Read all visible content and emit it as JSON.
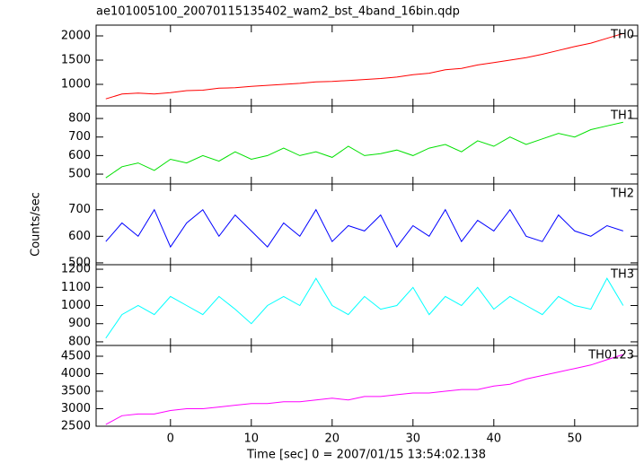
{
  "chart_data": {
    "type": "line",
    "title": "ae101005100_20070115135402_wam2_bst_4band_16bin.qdp",
    "x_label": "Time [sec] 0 = 2007/01/15 13:54:02.138",
    "y_label": "Counts/sec",
    "xlim": [
      -9.2,
      57.8
    ],
    "xticks": [
      0,
      10,
      20,
      30,
      40,
      50
    ],
    "x": [
      -8,
      -6,
      -4,
      -2,
      0,
      2,
      4,
      6,
      8,
      10,
      12,
      14,
      16,
      18,
      20,
      22,
      24,
      26,
      28,
      30,
      32,
      34,
      36,
      38,
      40,
      42,
      44,
      46,
      48,
      50,
      52,
      54,
      56
    ],
    "panels": [
      {
        "name": "TH0",
        "color": "#ff0000",
        "ylim": [
          556,
          2222
        ],
        "yticks": [
          1000,
          1500,
          2000
        ],
        "values": [
          700,
          800,
          820,
          800,
          830,
          870,
          880,
          920,
          930,
          960,
          980,
          1000,
          1020,
          1050,
          1060,
          1080,
          1100,
          1120,
          1150,
          1200,
          1230,
          1300,
          1330,
          1400,
          1450,
          1500,
          1550,
          1620,
          1700,
          1780,
          1850,
          1950,
          2050
        ]
      },
      {
        "name": "TH1",
        "color": "#00e000",
        "ylim": [
          447,
          868
        ],
        "yticks": [
          500,
          600,
          700,
          800
        ],
        "values": [
          480,
          540,
          560,
          520,
          580,
          560,
          600,
          570,
          620,
          580,
          600,
          640,
          600,
          620,
          590,
          650,
          600,
          610,
          630,
          600,
          640,
          660,
          620,
          680,
          650,
          700,
          660,
          690,
          720,
          700,
          740,
          760,
          780
        ]
      },
      {
        "name": "TH2",
        "color": "#0000ff",
        "ylim": [
          493,
          797
        ],
        "yticks": [
          500,
          600,
          700
        ],
        "values": [
          580,
          650,
          600,
          700,
          560,
          650,
          700,
          600,
          680,
          620,
          560,
          650,
          600,
          700,
          580,
          640,
          620,
          680,
          560,
          640,
          600,
          700,
          580,
          660,
          620,
          700,
          600,
          580,
          680,
          620,
          600,
          640,
          620
        ]
      },
      {
        "name": "TH3",
        "color": "#00ffff",
        "ylim": [
          780,
          1225
        ],
        "yticks": [
          800,
          900,
          1000,
          1100,
          1200
        ],
        "values": [
          820,
          950,
          1000,
          950,
          1050,
          1000,
          950,
          1050,
          980,
          900,
          1000,
          1050,
          1000,
          1150,
          1000,
          950,
          1050,
          980,
          1000,
          1100,
          950,
          1050,
          1000,
          1100,
          980,
          1050,
          1000,
          950,
          1050,
          1000,
          980,
          1150,
          1000
        ]
      },
      {
        "name": "TH0123",
        "color": "#ff00ff",
        "ylim": [
          2500,
          4808
        ],
        "yticks": [
          2500,
          3000,
          3500,
          4000,
          4500
        ],
        "values": [
          2550,
          2800,
          2850,
          2850,
          2950,
          3000,
          3000,
          3050,
          3100,
          3150,
          3150,
          3200,
          3200,
          3250,
          3300,
          3250,
          3350,
          3350,
          3400,
          3450,
          3450,
          3500,
          3550,
          3550,
          3650,
          3700,
          3850,
          3950,
          4050,
          4150,
          4250,
          4400,
          4550
        ]
      }
    ]
  }
}
